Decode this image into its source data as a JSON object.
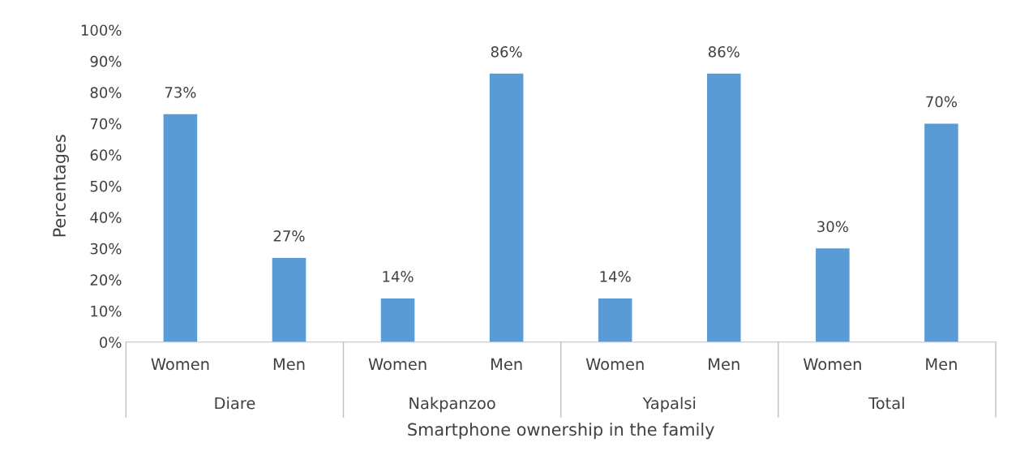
{
  "chart_data": {
    "type": "bar",
    "categories": [
      "Women",
      "Men",
      "Women",
      "Men",
      "Women",
      "Men",
      "Women",
      "Men"
    ],
    "values": [
      73,
      27,
      14,
      86,
      14,
      86,
      30,
      70
    ],
    "value_labels": [
      "73%",
      "27%",
      "14%",
      "86%",
      "14%",
      "86%",
      "30%",
      "70%"
    ],
    "color": "#5b9bd5",
    "annotations": [
      "Diare",
      "Nakpanzoo",
      "Yapalsi",
      "Total"
    ],
    "xlabel": "Smartphone ownership in the family",
    "ylabel": "Percentages",
    "ylim": [
      0,
      100
    ],
    "yticks": [
      {
        "value": 0,
        "label": "0%"
      },
      {
        "value": 10,
        "label": "10%"
      },
      {
        "value": 20,
        "label": "20%"
      },
      {
        "value": 30,
        "label": "30%"
      },
      {
        "value": 40,
        "label": "40%"
      },
      {
        "value": 50,
        "label": "50%"
      },
      {
        "value": 60,
        "label": "60%"
      },
      {
        "value": 70,
        "label": "70%"
      },
      {
        "value": 80,
        "label": "80%"
      },
      {
        "value": 90,
        "label": "90%"
      },
      {
        "value": 100,
        "label": "100%"
      }
    ],
    "grid": false,
    "legend": false
  }
}
